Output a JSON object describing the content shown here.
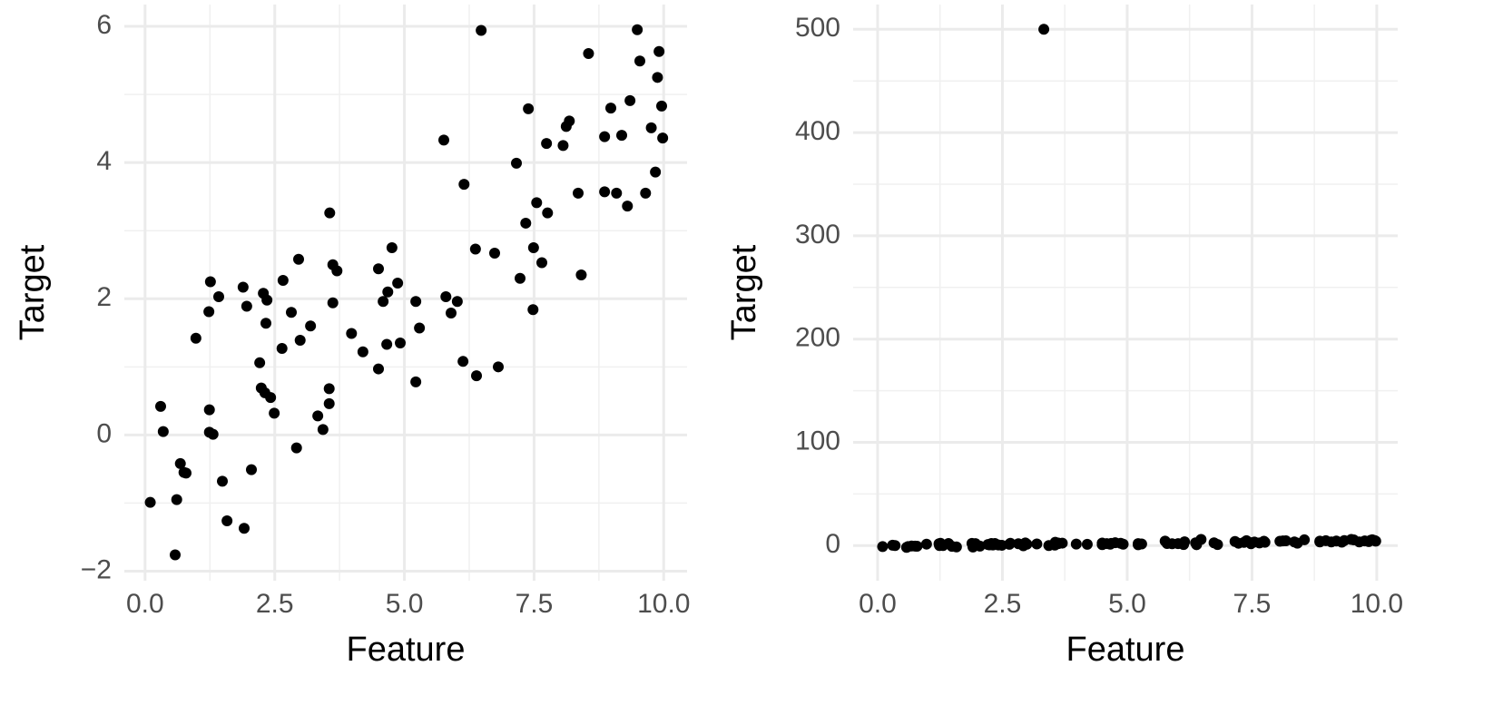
{
  "chart_data": [
    {
      "type": "scatter",
      "x_label": "Feature",
      "y_label": "Target",
      "color": "#000000",
      "grid": true,
      "xlim": [
        -0.4,
        10.45
      ],
      "ylim": [
        -2.14,
        6.32
      ],
      "xticks": [
        {
          "value": 0,
          "label": "0.0"
        },
        2.5,
        {
          "value": 5,
          "label": "5.0"
        },
        7.5,
        {
          "value": 10,
          "label": "10.0"
        }
      ],
      "yticks": [
        {
          "value": -2,
          "label": "−2"
        },
        0,
        2,
        4,
        6
      ],
      "x": [
        0.1,
        0.3,
        0.35,
        0.58,
        0.61,
        0.68,
        0.75,
        0.79,
        0.98,
        1.23,
        1.26,
        1.24,
        1.24,
        1.31,
        1.42,
        1.49,
        1.58,
        1.89,
        1.91,
        1.96,
        2.05,
        2.21,
        2.24,
        2.28,
        2.31,
        2.33,
        2.35,
        2.42,
        2.49,
        2.64,
        2.66,
        2.82,
        2.92,
        2.96,
        2.99,
        3.19,
        3.33,
        3.43,
        3.56,
        3.55,
        3.55,
        3.62,
        3.62,
        3.7,
        3.98,
        4.2,
        4.5,
        4.5,
        4.59,
        4.66,
        4.68,
        4.76,
        4.87,
        4.92,
        5.22,
        5.22,
        5.29,
        5.76,
        5.8,
        5.9,
        6.02,
        6.13,
        6.15,
        6.37,
        6.39,
        6.48,
        6.74,
        6.81,
        7.16,
        7.23,
        7.34,
        7.39,
        7.48,
        7.49,
        7.55,
        7.65,
        7.74,
        7.76,
        8.06,
        8.12,
        8.18,
        8.35,
        8.41,
        8.55,
        8.86,
        8.86,
        8.98,
        9.09,
        9.19,
        9.3,
        9.35,
        9.49,
        9.54,
        9.65,
        9.76,
        9.84,
        9.88,
        9.91,
        9.96,
        9.98
      ],
      "values": [
        -0.99,
        0.42,
        0.05,
        -1.76,
        -0.95,
        -0.42,
        -0.55,
        -0.56,
        1.42,
        1.81,
        2.25,
        0.37,
        0.04,
        0.01,
        2.03,
        -0.68,
        -1.26,
        2.17,
        -1.37,
        1.89,
        -0.51,
        1.06,
        0.69,
        2.08,
        0.62,
        1.64,
        1.98,
        0.55,
        0.32,
        1.27,
        2.27,
        1.8,
        -0.19,
        2.58,
        1.39,
        1.6,
        0.28,
        0.08,
        3.26,
        0.68,
        0.46,
        2.5,
        1.94,
        2.41,
        1.49,
        1.22,
        2.44,
        0.97,
        1.96,
        1.33,
        2.1,
        2.75,
        2.23,
        1.35,
        1.96,
        0.78,
        1.57,
        4.33,
        2.03,
        1.79,
        1.96,
        1.08,
        3.68,
        2.73,
        0.87,
        5.94,
        2.67,
        1.0,
        3.99,
        2.3,
        3.11,
        4.79,
        1.84,
        2.75,
        3.41,
        2.53,
        4.28,
        3.26,
        4.25,
        4.53,
        4.61,
        3.55,
        2.35,
        5.6,
        4.38,
        3.57,
        4.8,
        3.55,
        4.4,
        3.36,
        4.91,
        5.95,
        5.49,
        3.55,
        4.51,
        3.86,
        5.25,
        5.63,
        4.83,
        4.36
      ]
    },
    {
      "type": "scatter",
      "x_label": "Feature",
      "y_label": "Target",
      "color": "#000000",
      "grid": true,
      "xlim": [
        -0.49,
        10.42
      ],
      "ylim": [
        -34,
        524
      ],
      "xticks": [
        {
          "value": 0,
          "label": "0.0"
        },
        2.5,
        {
          "value": 5,
          "label": "5.0"
        },
        7.5,
        {
          "value": 10,
          "label": "10.0"
        }
      ],
      "yticks": [
        0,
        100,
        200,
        300,
        400,
        500
      ],
      "x": [
        0.1,
        0.3,
        0.35,
        0.58,
        0.61,
        0.68,
        0.75,
        0.79,
        0.98,
        1.23,
        1.26,
        1.24,
        1.24,
        1.31,
        1.42,
        1.49,
        1.58,
        1.89,
        1.91,
        1.96,
        2.05,
        2.21,
        2.24,
        2.28,
        2.31,
        2.33,
        2.35,
        2.42,
        2.49,
        2.64,
        2.66,
        2.82,
        2.92,
        2.96,
        2.99,
        3.19,
        3.33,
        3.43,
        3.56,
        3.55,
        3.55,
        3.62,
        3.62,
        3.7,
        3.98,
        4.2,
        4.5,
        4.5,
        4.59,
        4.66,
        4.68,
        4.76,
        4.87,
        4.92,
        5.22,
        5.22,
        5.29,
        5.76,
        5.8,
        5.9,
        6.02,
        6.13,
        6.15,
        6.37,
        6.39,
        6.48,
        6.74,
        6.81,
        7.16,
        7.23,
        7.34,
        7.39,
        7.48,
        7.49,
        7.55,
        7.65,
        7.74,
        7.76,
        8.06,
        8.12,
        8.18,
        8.35,
        8.41,
        8.55,
        8.86,
        8.86,
        8.98,
        9.09,
        9.19,
        9.3,
        9.35,
        9.49,
        9.54,
        9.65,
        9.76,
        9.84,
        9.88,
        9.91,
        9.96,
        9.98
      ],
      "values": [
        -0.99,
        0.42,
        0.05,
        -1.76,
        -0.95,
        -0.42,
        -0.55,
        -0.56,
        1.42,
        1.81,
        2.25,
        0.37,
        0.04,
        0.01,
        2.03,
        -0.68,
        -1.26,
        2.17,
        -1.37,
        1.89,
        -0.51,
        1.06,
        0.69,
        2.08,
        0.62,
        1.64,
        1.98,
        0.55,
        0.32,
        1.27,
        2.27,
        1.8,
        -0.19,
        2.58,
        1.39,
        1.6,
        500,
        0.08,
        3.26,
        0.68,
        0.46,
        2.5,
        1.94,
        2.41,
        1.49,
        1.22,
        2.44,
        0.97,
        1.96,
        1.33,
        2.1,
        2.75,
        2.23,
        1.35,
        1.96,
        0.78,
        1.57,
        4.33,
        2.03,
        1.79,
        1.96,
        1.08,
        3.68,
        2.73,
        0.87,
        5.94,
        2.67,
        1.0,
        3.99,
        2.3,
        3.11,
        4.79,
        1.84,
        2.75,
        3.41,
        2.53,
        4.28,
        3.26,
        4.25,
        4.53,
        4.61,
        3.55,
        2.35,
        5.6,
        4.38,
        3.57,
        4.8,
        3.55,
        4.4,
        3.36,
        4.91,
        5.95,
        5.49,
        3.55,
        4.51,
        3.86,
        5.25,
        5.63,
        4.83,
        4.36
      ]
    }
  ]
}
